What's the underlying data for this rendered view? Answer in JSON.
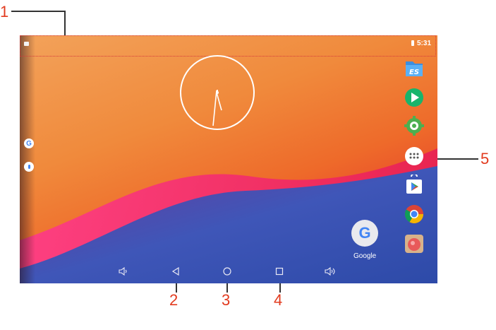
{
  "callouts": {
    "c1": "1",
    "c2": "2",
    "c3": "3",
    "c4": "4",
    "c5": "5"
  },
  "status": {
    "time": "5:31"
  },
  "desktop": {
    "google_label": "Google"
  },
  "icons": {
    "dock": [
      "es-file-explorer-icon",
      "play-video-icon",
      "settings-gear-icon",
      "apps-drawer-icon",
      "play-store-icon",
      "chrome-icon",
      "camera-icon"
    ],
    "left": [
      "google-search-icon",
      "voice-search-icon"
    ]
  },
  "colors": {
    "callout": "#e23b1f",
    "navbar_icons": "#e8e8f4"
  }
}
